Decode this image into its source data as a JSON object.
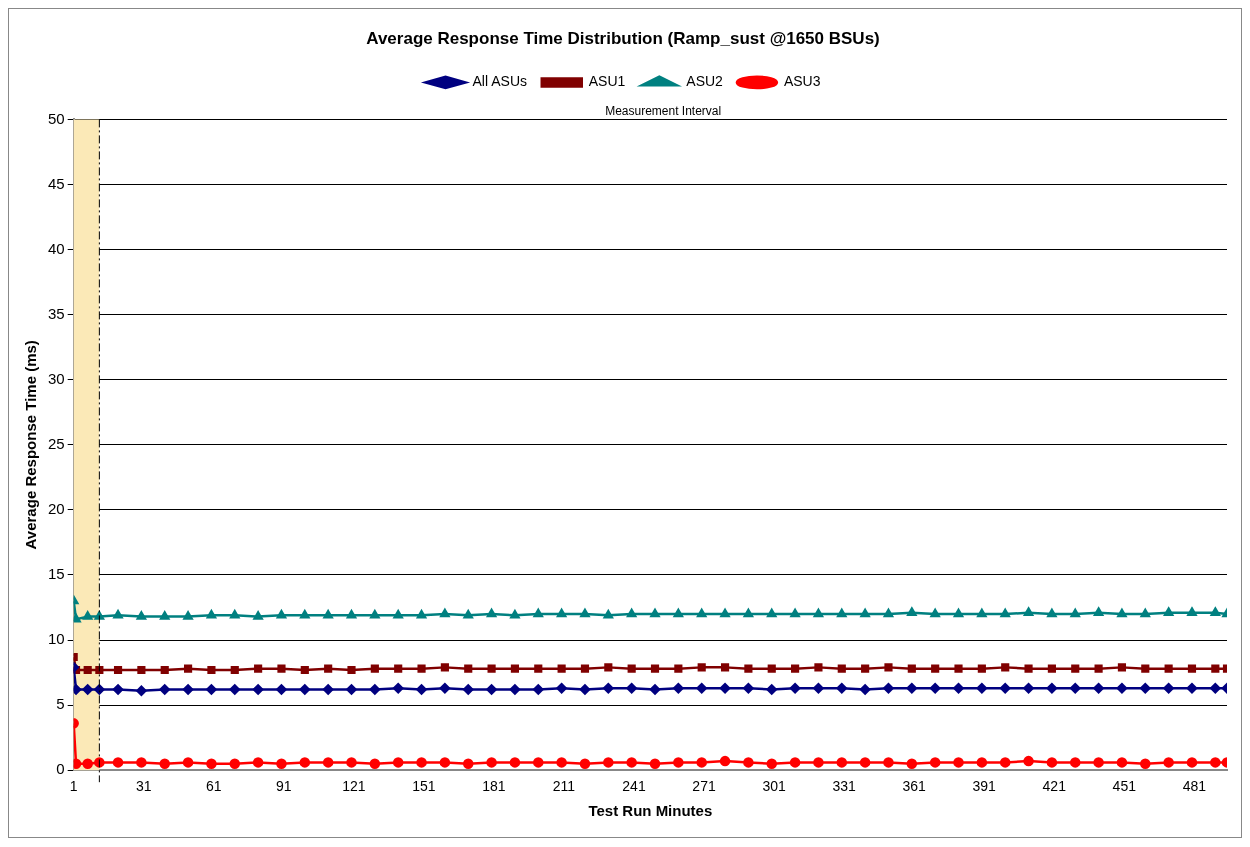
{
  "chart_data": {
    "type": "line",
    "title": "Average Response Time Distribution (Ramp_sust @1650 BSUs)",
    "xlabel": "Test Run Minutes",
    "ylabel": "Average Response Time (ms)",
    "x": [
      1,
      2,
      7,
      12,
      20,
      30,
      40,
      50,
      60,
      70,
      80,
      90,
      100,
      110,
      120,
      130,
      140,
      150,
      160,
      170,
      180,
      190,
      200,
      210,
      220,
      230,
      240,
      250,
      260,
      270,
      280,
      290,
      300,
      310,
      320,
      330,
      340,
      350,
      360,
      370,
      380,
      390,
      400,
      410,
      420,
      430,
      440,
      450,
      460,
      470,
      480,
      490,
      495
    ],
    "series": [
      {
        "name": "All ASUs",
        "color": "#000080",
        "marker": "diamond",
        "values": [
          7.9,
          6.2,
          6.2,
          6.2,
          6.2,
          6.1,
          6.2,
          6.2,
          6.2,
          6.2,
          6.2,
          6.2,
          6.2,
          6.2,
          6.2,
          6.2,
          6.3,
          6.2,
          6.3,
          6.2,
          6.2,
          6.2,
          6.2,
          6.3,
          6.2,
          6.3,
          6.3,
          6.2,
          6.3,
          6.3,
          6.3,
          6.3,
          6.2,
          6.3,
          6.3,
          6.3,
          6.2,
          6.3,
          6.3,
          6.3,
          6.3,
          6.3,
          6.3,
          6.3,
          6.3,
          6.3,
          6.3,
          6.3,
          6.3,
          6.3,
          6.3,
          6.3,
          6.3
        ]
      },
      {
        "name": "ASU1",
        "color": "#800000",
        "marker": "square",
        "values": [
          8.7,
          7.7,
          7.7,
          7.7,
          7.7,
          7.7,
          7.7,
          7.8,
          7.7,
          7.7,
          7.8,
          7.8,
          7.7,
          7.8,
          7.7,
          7.8,
          7.8,
          7.8,
          7.9,
          7.8,
          7.8,
          7.8,
          7.8,
          7.8,
          7.8,
          7.9,
          7.8,
          7.8,
          7.8,
          7.9,
          7.9,
          7.8,
          7.8,
          7.8,
          7.9,
          7.8,
          7.8,
          7.9,
          7.8,
          7.8,
          7.8,
          7.8,
          7.9,
          7.8,
          7.8,
          7.8,
          7.8,
          7.9,
          7.8,
          7.8,
          7.8,
          7.8,
          7.8
        ]
      },
      {
        "name": "ASU2",
        "color": "#008080",
        "marker": "triangle",
        "values": [
          13.0,
          11.6,
          11.8,
          11.8,
          11.9,
          11.8,
          11.8,
          11.8,
          11.9,
          11.9,
          11.8,
          11.9,
          11.9,
          11.9,
          11.9,
          11.9,
          11.9,
          11.9,
          12.0,
          11.9,
          12.0,
          11.9,
          12.0,
          12.0,
          12.0,
          11.9,
          12.0,
          12.0,
          12.0,
          12.0,
          12.0,
          12.0,
          12.0,
          12.0,
          12.0,
          12.0,
          12.0,
          12.0,
          12.1,
          12.0,
          12.0,
          12.0,
          12.0,
          12.1,
          12.0,
          12.0,
          12.1,
          12.0,
          12.0,
          12.1,
          12.1,
          12.1,
          12.0
        ]
      },
      {
        "name": "ASU3",
        "color": "#ff0000",
        "marker": "circle",
        "values": [
          3.6,
          0.5,
          0.5,
          0.6,
          0.6,
          0.6,
          0.5,
          0.6,
          0.5,
          0.5,
          0.6,
          0.5,
          0.6,
          0.6,
          0.6,
          0.5,
          0.6,
          0.6,
          0.6,
          0.5,
          0.6,
          0.6,
          0.6,
          0.6,
          0.5,
          0.6,
          0.6,
          0.5,
          0.6,
          0.6,
          0.7,
          0.6,
          0.5,
          0.6,
          0.6,
          0.6,
          0.6,
          0.6,
          0.5,
          0.6,
          0.6,
          0.6,
          0.6,
          0.7,
          0.6,
          0.6,
          0.6,
          0.6,
          0.5,
          0.6,
          0.6,
          0.6,
          0.6
        ]
      }
    ],
    "xlim": [
      1,
      495
    ],
    "xticks": [
      1,
      31,
      61,
      91,
      121,
      151,
      181,
      211,
      241,
      271,
      301,
      331,
      361,
      391,
      421,
      451,
      481
    ],
    "ylim": [
      0,
      50
    ],
    "yticks": [
      0,
      5,
      10,
      15,
      20,
      25,
      30,
      35,
      40,
      45,
      50
    ],
    "grid": "y",
    "legend": "top",
    "bands": [
      {
        "axis": "x",
        "from": 1,
        "to": 12,
        "color": "#fbe9b7"
      }
    ],
    "ref_lines": [
      {
        "axis": "x",
        "value": 12,
        "line_style": "dashed",
        "color": "#000000"
      }
    ],
    "annotations": [
      "Measurement Interval"
    ]
  }
}
